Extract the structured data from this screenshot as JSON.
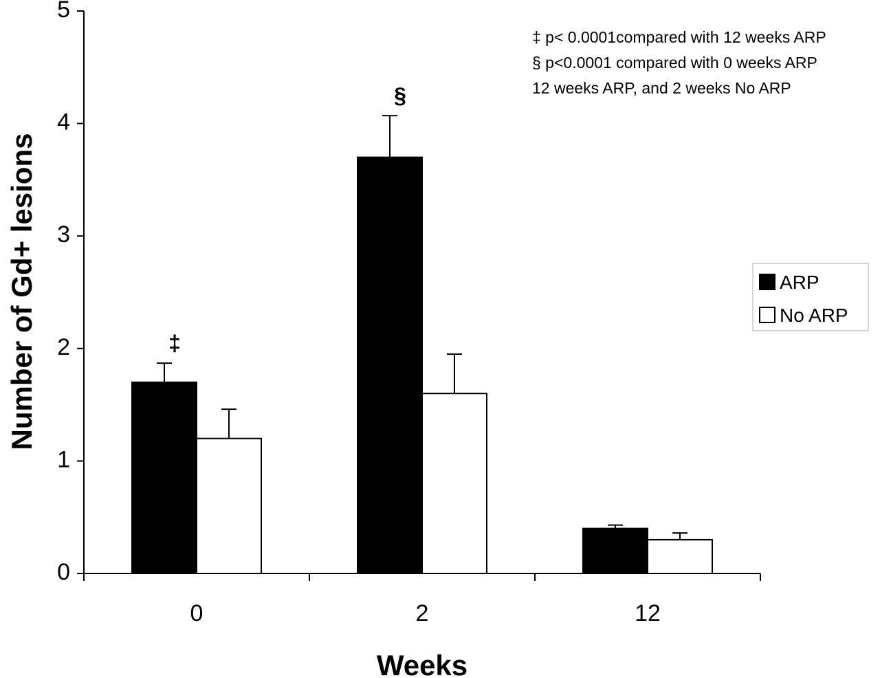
{
  "chart_data": {
    "type": "bar",
    "title": "",
    "xlabel": "Weeks",
    "ylabel": "Number of Gd+ lesions",
    "ylim": [
      0,
      5
    ],
    "yticks": [
      0,
      1,
      2,
      3,
      4,
      5
    ],
    "grid": false,
    "categories": [
      "0",
      "2",
      "12"
    ],
    "series": [
      {
        "name": "ARP",
        "fill": "#000000",
        "values": [
          1.7,
          3.7,
          0.4
        ],
        "error": [
          0.17,
          0.37,
          0.03
        ]
      },
      {
        "name": "No ARP",
        "fill": "#ffffff",
        "values": [
          1.2,
          1.6,
          0.3
        ],
        "error": [
          0.26,
          0.35,
          0.06
        ]
      }
    ],
    "significance_markers": [
      {
        "category": "0",
        "series": "ARP",
        "symbol": "‡"
      },
      {
        "category": "2",
        "series": "ARP",
        "symbol": "§"
      }
    ],
    "annotations": [
      "‡ p< 0.0001compared with 12 weeks ARP",
      "§ p<0.0001 compared with 0 weeks ARP",
      "12 weeks ARP, and 2 weeks No ARP"
    ],
    "legend_position": "right"
  }
}
